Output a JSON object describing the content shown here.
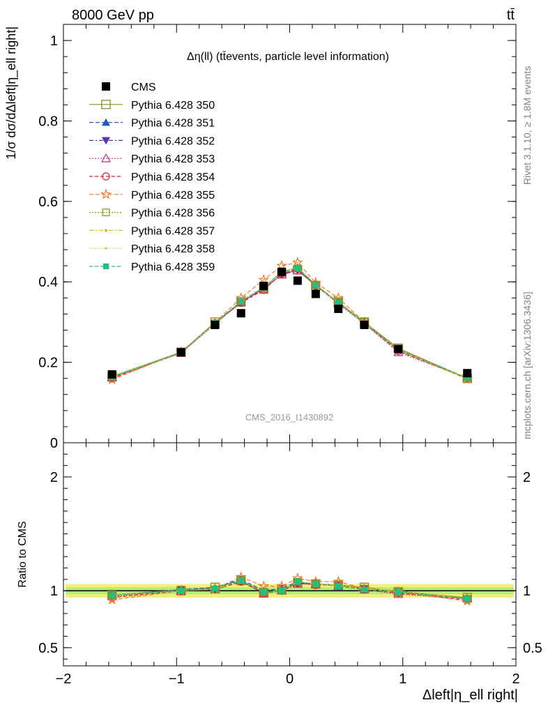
{
  "header": {
    "energy_label": "8000 GeV pp",
    "process_label": "tt̄",
    "plot_title": "Δη(ll) (tt̄events, particle level information)",
    "watermark": "CMS_2016_I1430892",
    "side_label_top": "Rivet 3.1.10, ≥ 1.8M events",
    "side_label_bottom": "mcplots.cern.ch [arXiv:1306.3436]",
    "ylabel_main": "1/σ dσ/dΔleft|η_ell right|",
    "ylabel_ratio": "Ratio to CMS",
    "xlabel": "Δleft|η_ell right|"
  },
  "chart_data": [
    {
      "type": "scatter",
      "panel": "main",
      "xlim": [
        -2,
        2
      ],
      "ylim": [
        0,
        1.04
      ],
      "yticks": [
        "0",
        "0.2",
        "0.4",
        "0.6",
        "0.8",
        "1"
      ],
      "legend_position": "top-left",
      "x": [
        -1.57,
        -0.96,
        -0.66,
        -0.43,
        -0.23,
        -0.07,
        0.07,
        0.23,
        0.43,
        0.66,
        0.96,
        1.57
      ],
      "series": [
        {
          "name": "CMS",
          "color": "#000000",
          "marker": "square-filled",
          "dash": "none",
          "values": [
            0.17,
            0.225,
            0.293,
            0.322,
            0.39,
            0.425,
            0.403,
            0.37,
            0.333,
            0.293,
            0.233,
            0.173
          ]
        },
        {
          "name": "Pythia 6.428 350",
          "color": "#8c8c1e",
          "marker": "square-open",
          "dash": "solid",
          "values": [
            0.165,
            0.225,
            0.3,
            0.35,
            0.382,
            0.42,
            0.43,
            0.39,
            0.35,
            0.3,
            0.235,
            0.16
          ]
        },
        {
          "name": "Pythia 6.428 351",
          "color": "#1f5bbf",
          "marker": "triangle-up-filled",
          "dash": "6,3",
          "values": [
            0.162,
            0.224,
            0.298,
            0.352,
            0.386,
            0.425,
            0.435,
            0.393,
            0.348,
            0.298,
            0.231,
            0.16
          ]
        },
        {
          "name": "Pythia 6.428 352",
          "color": "#5b2db0",
          "marker": "triangle-down-filled",
          "dash": "6,3,2,3",
          "values": [
            0.163,
            0.223,
            0.297,
            0.348,
            0.384,
            0.418,
            0.428,
            0.392,
            0.348,
            0.297,
            0.23,
            0.161
          ]
        },
        {
          "name": "Pythia 6.428 353",
          "color": "#c0308f",
          "marker": "triangle-up-open",
          "dash": "2,2",
          "values": [
            0.162,
            0.223,
            0.295,
            0.35,
            0.383,
            0.418,
            0.428,
            0.392,
            0.345,
            0.296,
            0.225,
            0.161
          ]
        },
        {
          "name": "Pythia 6.428 354",
          "color": "#e0202a",
          "marker": "circle-open",
          "dash": "5,3",
          "values": [
            0.16,
            0.224,
            0.297,
            0.348,
            0.38,
            0.42,
            0.432,
            0.39,
            0.348,
            0.297,
            0.228,
            0.16
          ]
        },
        {
          "name": "Pythia 6.428 355",
          "color": "#f07828",
          "marker": "star-open",
          "dash": "6,3",
          "values": [
            0.157,
            0.226,
            0.299,
            0.36,
            0.405,
            0.44,
            0.448,
            0.398,
            0.36,
            0.3,
            0.231,
            0.158
          ]
        },
        {
          "name": "Pythia 6.428 356",
          "color": "#7f9a1e",
          "marker": "square-open-small",
          "dash": "2,2",
          "values": [
            0.164,
            0.226,
            0.297,
            0.352,
            0.386,
            0.424,
            0.434,
            0.392,
            0.35,
            0.3,
            0.234,
            0.161
          ]
        },
        {
          "name": "Pythia 6.428 357",
          "color": "#d8c020",
          "marker": "dot",
          "dash": "6,3,2,3",
          "values": [
            0.163,
            0.225,
            0.298,
            0.352,
            0.387,
            0.425,
            0.436,
            0.394,
            0.349,
            0.299,
            0.232,
            0.16
          ]
        },
        {
          "name": "Pythia 6.428 358",
          "color": "#c8d820",
          "marker": "dot-small",
          "dash": "2,2",
          "values": [
            0.163,
            0.224,
            0.297,
            0.351,
            0.386,
            0.424,
            0.435,
            0.393,
            0.348,
            0.298,
            0.231,
            0.16
          ]
        },
        {
          "name": "Pythia 6.428 359",
          "color": "#20c08a",
          "marker": "square-filled-small",
          "dash": "5,3",
          "values": [
            0.164,
            0.225,
            0.298,
            0.351,
            0.387,
            0.424,
            0.434,
            0.392,
            0.348,
            0.297,
            0.232,
            0.161
          ]
        }
      ]
    },
    {
      "type": "scatter",
      "panel": "ratio",
      "xlim": [
        -2,
        2
      ],
      "ylim": [
        0.34,
        2.3
      ],
      "yticks": [
        "0.5",
        "1",
        "2"
      ],
      "xticks": [
        "−2",
        "−1",
        "0",
        "1",
        "2"
      ],
      "band_colors": [
        "#f5f07a",
        "#b4ec7a"
      ],
      "x": [
        -1.57,
        -0.96,
        -0.66,
        -0.43,
        -0.23,
        -0.07,
        0.07,
        0.23,
        0.43,
        0.66,
        0.96,
        1.57
      ],
      "series": [
        {
          "name": "Pythia 6.428 350",
          "values": [
            0.96,
            1.0,
            1.03,
            1.09,
            0.98,
            1.01,
            1.07,
            1.06,
            1.05,
            1.03,
            0.99,
            0.94
          ]
        },
        {
          "name": "Pythia 6.428 351",
          "values": [
            0.96,
            1.01,
            1.03,
            1.1,
            1.0,
            1.02,
            1.08,
            1.06,
            1.05,
            1.02,
            0.99,
            0.93
          ]
        },
        {
          "name": "Pythia 6.428 352",
          "values": [
            0.96,
            1.01,
            1.01,
            1.08,
            0.99,
            1.0,
            1.06,
            1.06,
            1.05,
            1.02,
            0.99,
            0.93
          ]
        },
        {
          "name": "Pythia 6.428 353",
          "values": [
            0.95,
            1.0,
            1.01,
            1.09,
            0.98,
            1.0,
            1.06,
            1.06,
            1.04,
            1.01,
            0.97,
            0.93
          ]
        },
        {
          "name": "Pythia 6.428 354",
          "values": [
            0.94,
            1.0,
            1.01,
            1.08,
            0.98,
            1.0,
            1.07,
            1.05,
            1.05,
            1.01,
            0.98,
            0.92
          ]
        },
        {
          "name": "Pythia 6.428 355",
          "values": [
            0.92,
            1.0,
            1.02,
            1.12,
            1.04,
            1.04,
            1.11,
            1.08,
            1.08,
            1.02,
            0.99,
            0.91
          ]
        },
        {
          "name": "Pythia 6.428 356",
          "values": [
            0.96,
            1.01,
            1.01,
            1.09,
            0.99,
            1.0,
            1.08,
            1.06,
            1.05,
            1.02,
            1.0,
            0.93
          ]
        },
        {
          "name": "Pythia 6.428 357",
          "values": [
            0.96,
            1.0,
            1.02,
            1.09,
            0.99,
            1.0,
            1.08,
            1.06,
            1.05,
            1.02,
            1.0,
            0.93
          ]
        },
        {
          "name": "Pythia 6.428 358",
          "values": [
            0.96,
            1.0,
            1.01,
            1.09,
            0.99,
            1.0,
            1.08,
            1.06,
            1.04,
            1.02,
            0.99,
            0.93
          ]
        },
        {
          "name": "Pythia 6.428 359",
          "values": [
            0.96,
            1.0,
            1.02,
            1.09,
            0.99,
            1.0,
            1.08,
            1.06,
            1.04,
            1.01,
            0.99,
            0.93
          ]
        }
      ]
    }
  ]
}
